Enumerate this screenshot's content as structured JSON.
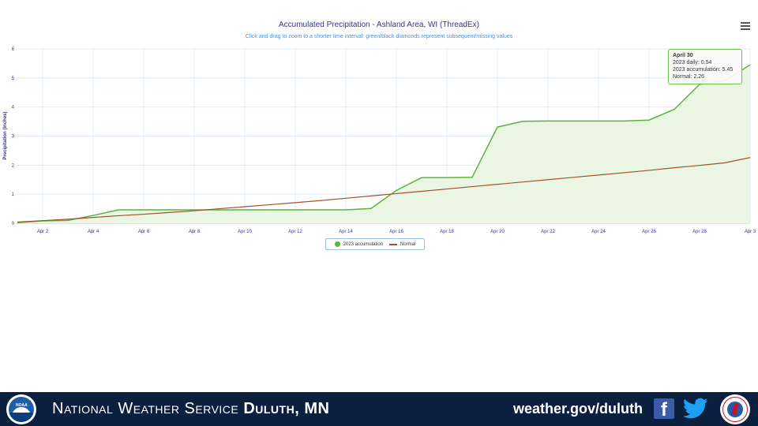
{
  "chart_data": {
    "type": "area",
    "title": "Accumulated Precipitation - Ashland Area, WI (ThreadEx)",
    "subtitle": "Click and drag to zoom to a shorter time interval: green/black diamonds represent subsequent/missing values",
    "ylabel": "Precipitation (inches)",
    "ylim": [
      0,
      6
    ],
    "yticks": [
      "0",
      "1",
      "2",
      "3",
      "4",
      "5",
      "6"
    ],
    "xlim": [
      1,
      30
    ],
    "xticks": [
      {
        "day": 2,
        "label": "Apr 2"
      },
      {
        "day": 4,
        "label": "Apr 4"
      },
      {
        "day": 6,
        "label": "Apr 6"
      },
      {
        "day": 8,
        "label": "Apr 8"
      },
      {
        "day": 10,
        "label": "Apr 10"
      },
      {
        "day": 12,
        "label": "Apr 12"
      },
      {
        "day": 14,
        "label": "Apr 14"
      },
      {
        "day": 16,
        "label": "Apr 16"
      },
      {
        "day": 18,
        "label": "Apr 18"
      },
      {
        "day": 20,
        "label": "Apr 20"
      },
      {
        "day": 22,
        "label": "Apr 22"
      },
      {
        "day": 24,
        "label": "Apr 24"
      },
      {
        "day": 26,
        "label": "Apr 26"
      },
      {
        "day": 28,
        "label": "Apr 28"
      },
      {
        "day": 30,
        "label": "Apr 3"
      }
    ],
    "grid": true,
    "legend_position": "bottom-center",
    "series": [
      {
        "name": "2023 accumulation",
        "color": "#5cb33d",
        "fill": "#eaf6e3",
        "x": [
          1,
          2,
          3,
          4,
          5,
          6,
          7,
          8,
          9,
          10,
          11,
          12,
          13,
          14,
          15,
          16,
          17,
          18,
          19,
          20,
          21,
          22,
          23,
          24,
          25,
          26,
          27,
          28,
          29,
          30
        ],
        "values": [
          0.02,
          0.08,
          0.1,
          0.27,
          0.46,
          0.46,
          0.46,
          0.46,
          0.46,
          0.46,
          0.46,
          0.46,
          0.46,
          0.46,
          0.51,
          1.13,
          1.57,
          1.57,
          1.58,
          3.31,
          3.51,
          3.52,
          3.52,
          3.52,
          3.52,
          3.55,
          3.92,
          4.78,
          4.91,
          5.45
        ]
      },
      {
        "name": "Normal",
        "color": "#a0522d",
        "x": [
          1,
          2,
          3,
          4,
          5,
          6,
          7,
          8,
          9,
          10,
          11,
          12,
          13,
          14,
          15,
          16,
          17,
          18,
          19,
          20,
          21,
          22,
          23,
          24,
          25,
          26,
          27,
          28,
          29,
          30
        ],
        "values": [
          0.04,
          0.09,
          0.14,
          0.2,
          0.26,
          0.31,
          0.37,
          0.43,
          0.5,
          0.57,
          0.64,
          0.71,
          0.78,
          0.86,
          0.94,
          1.02,
          1.1,
          1.18,
          1.26,
          1.34,
          1.42,
          1.5,
          1.58,
          1.66,
          1.74,
          1.82,
          1.91,
          1.99,
          2.08,
          2.26
        ]
      }
    ],
    "tooltip": {
      "title": "April 30",
      "line1": "2023 daily: 0.54",
      "line2": "2023 accumulation: 5.45",
      "line3": "Normal: 2.26"
    }
  },
  "colors": {
    "grid": "#d8e6f5",
    "axis_text": "#333399",
    "banner_bg": "#0b1f3f"
  },
  "footer": {
    "agency": "National Weather Service",
    "office": "Duluth, MN",
    "url": "weather.gov/duluth",
    "facebook_glyph": "f",
    "noaa_logo_text": "NOAA",
    "icons": [
      "noaa-logo",
      "facebook-icon",
      "twitter-icon",
      "nws-seal"
    ]
  },
  "chart_menu_icon": "hamburger-menu-icon"
}
